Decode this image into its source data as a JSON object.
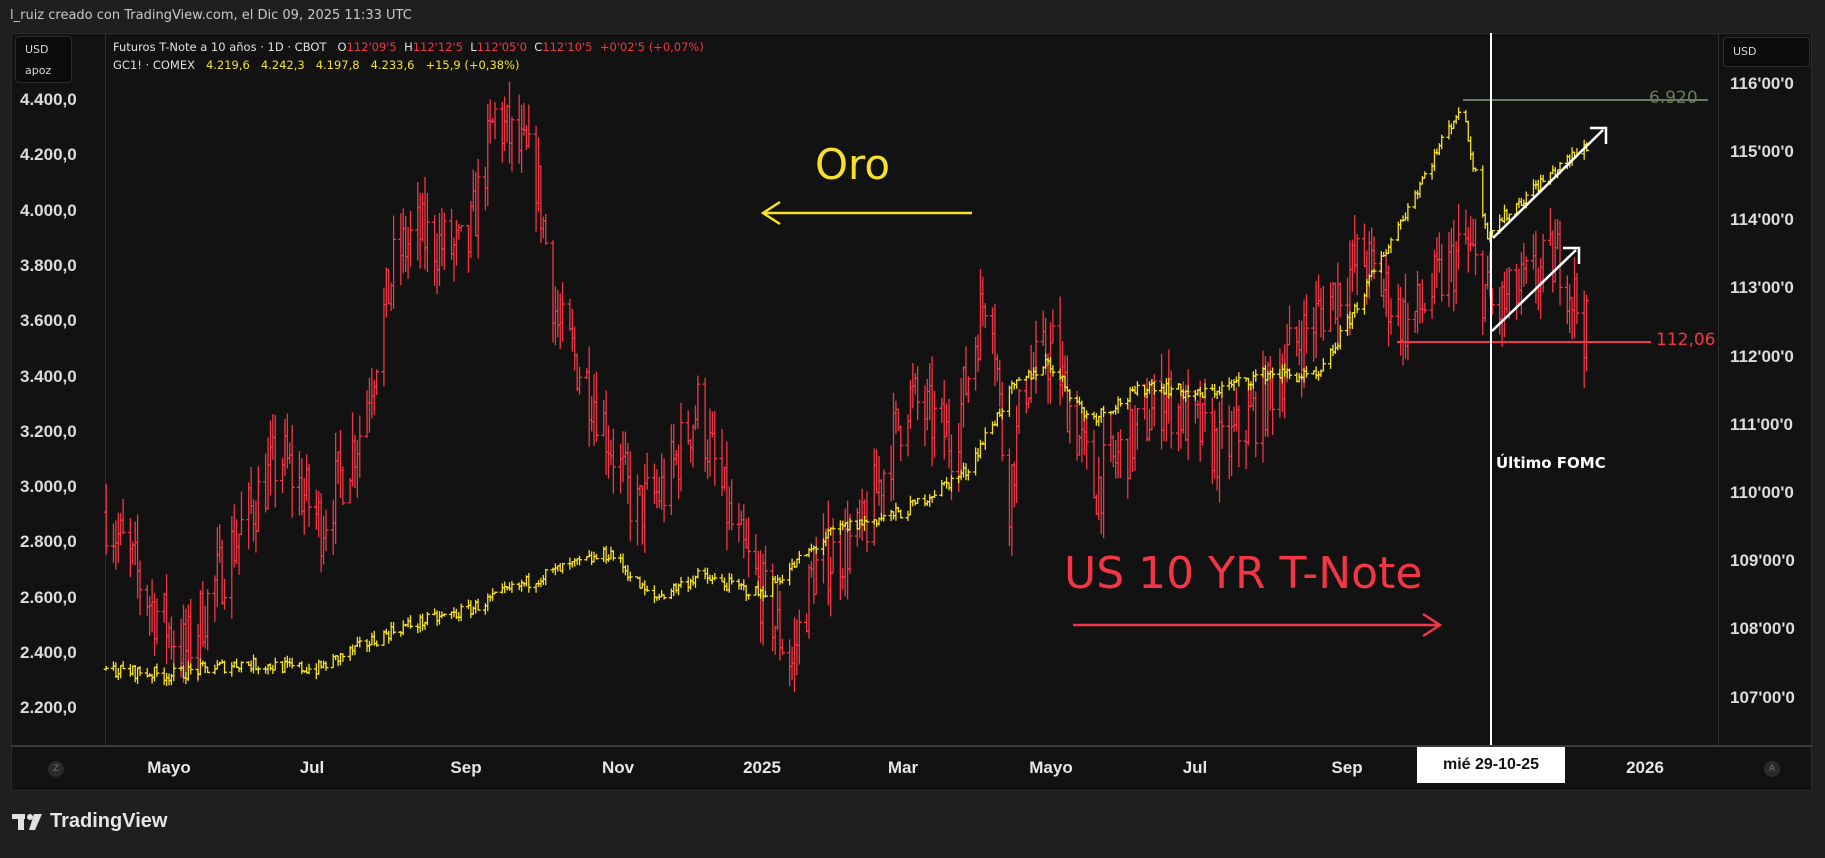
{
  "header": {
    "credit": "l_ruiz creado con TradingView.com, el Dic 09, 2025 11:33 UTC"
  },
  "left_panel": {
    "unit": "USD",
    "label": "apoz"
  },
  "right_panel": {
    "unit": "USD"
  },
  "legend": {
    "tnote": {
      "name": "Futuros T-Note a 10 años · 1D · CBOT",
      "o_label": "O",
      "o": "112'09'5",
      "h_label": "H",
      "h": "112'12'5",
      "l_label": "L",
      "l": "112'05'0",
      "c_label": "C",
      "c": "112'10'5",
      "change": "+0'02'5 (+0,07%)"
    },
    "gold": {
      "name": "GC1! · COMEX",
      "o": "4.219,6",
      "h": "4.242,3",
      "l": "4.197,8",
      "c": "4.233,6",
      "change": "+15,9 (+0,38%)"
    }
  },
  "annotations": {
    "gold": "Oro",
    "tnote": "US 10 YR T-Note",
    "fomc": "Último FOMC",
    "hline_gold": "6.920",
    "hline_tnote": "112,06",
    "crosshair_date": "mié 29-10-25"
  },
  "bottom": {
    "left_btn": "Z",
    "right_btn": "A"
  },
  "footer": {
    "brand": "TradingView"
  },
  "colors": {
    "gold": "#f5e12a",
    "tnote": "#f23645",
    "background": "#121212",
    "hline_gold": "#6b7a5e"
  },
  "chart_data": {
    "type": "ohlc",
    "x_axis": {
      "ticks": [
        "Mayo",
        "Jul",
        "Sep",
        "Nov",
        "2025",
        "Mar",
        "Mayo",
        "Jul",
        "Sep",
        "2026"
      ],
      "xlim": [
        "2024-04-04",
        "2026-02-01"
      ]
    },
    "y_left": {
      "ticks": [
        "4.400,0",
        "4.200,0",
        "4.000,0",
        "3.800,0",
        "3.600,0",
        "3.400,0",
        "3.200,0",
        "3.000,0",
        "2.800,0",
        "2.600,0",
        "2.400,0",
        "2.200,0"
      ],
      "ylim": [
        2150,
        4450
      ]
    },
    "y_right": {
      "ticks": [
        "116'00'0",
        "115'00'0",
        "114'00'0",
        "113'00'0",
        "112'00'0",
        "111'00'0",
        "110'00'0",
        "109'00'0",
        "108'00'0",
        "107'00'0"
      ],
      "ylim": [
        106.5,
        116.3
      ]
    },
    "grid": false,
    "series": [
      {
        "name": "GC1! · COMEX",
        "axis": "left",
        "color": "#f5e12a",
        "points": [
          [
            "2024-04-05",
            2341
          ],
          [
            "2024-05-01",
            2320
          ],
          [
            "2024-05-30",
            2362
          ],
          [
            "2024-07-01",
            2341
          ],
          [
            "2024-08-03",
            2488
          ],
          [
            "2024-09-01",
            2552
          ],
          [
            "2024-10-02",
            2678
          ],
          [
            "2024-10-31",
            2762
          ],
          [
            "2024-11-17",
            2594
          ],
          [
            "2024-12-06",
            2678
          ],
          [
            "2025-01-01",
            2614
          ],
          [
            "2025-02-01",
            2846
          ],
          [
            "2025-03-01",
            2909
          ],
          [
            "2025-03-27",
            3057
          ],
          [
            "2025-04-15",
            3352
          ],
          [
            "2025-04-30",
            3457
          ],
          [
            "2025-05-17",
            3246
          ],
          [
            "2025-06-12",
            3373
          ],
          [
            "2025-07-01",
            3330
          ],
          [
            "2025-07-31",
            3415
          ],
          [
            "2025-08-20",
            3394
          ],
          [
            "2025-09-08",
            3710
          ],
          [
            "2025-10-18",
            4383
          ],
          [
            "2025-10-29",
            3920
          ],
          [
            "2025-11-18",
            4088
          ],
          [
            "2025-12-09",
            4233.6
          ]
        ]
      },
      {
        "name": "Futuros T-Note a 10 años",
        "axis": "right",
        "color": "#f23645",
        "points": [
          [
            "2024-04-05",
            109.72
          ],
          [
            "2024-04-24",
            108.35
          ],
          [
            "2024-05-08",
            107.67
          ],
          [
            "2024-05-27",
            109.2
          ],
          [
            "2024-06-16",
            110.57
          ],
          [
            "2024-07-03",
            109.55
          ],
          [
            "2024-07-19",
            110.91
          ],
          [
            "2024-08-03",
            113.47
          ],
          [
            "2024-08-12",
            113.8
          ],
          [
            "2024-09-01",
            113.47
          ],
          [
            "2024-09-13",
            115.52
          ],
          [
            "2024-09-30",
            114.67
          ],
          [
            "2024-10-09",
            112.45
          ],
          [
            "2024-10-24",
            111.43
          ],
          [
            "2024-11-10",
            109.72
          ],
          [
            "2024-11-22",
            110.06
          ],
          [
            "2024-12-06",
            111.26
          ],
          [
            "2024-12-21",
            109.38
          ],
          [
            "2025-01-04",
            108.35
          ],
          [
            "2025-01-14",
            107.5
          ],
          [
            "2025-01-23",
            108.87
          ],
          [
            "2025-02-12",
            109.38
          ],
          [
            "2025-03-03",
            111.43
          ],
          [
            "2025-03-22",
            110.74
          ],
          [
            "2025-04-06",
            113.3
          ],
          [
            "2025-04-13",
            109.72
          ],
          [
            "2025-04-20",
            111.6
          ],
          [
            "2025-05-02",
            112.1
          ],
          [
            "2025-05-19",
            110.06
          ],
          [
            "2025-06-03",
            110.74
          ],
          [
            "2025-06-17",
            111.43
          ],
          [
            "2025-07-11",
            110.57
          ],
          [
            "2025-07-30",
            111.43
          ],
          [
            "2025-08-09",
            112.1
          ],
          [
            "2025-09-07",
            113.47
          ],
          [
            "2025-09-26",
            112.45
          ],
          [
            "2025-10-20",
            113.64
          ],
          [
            "2025-11-01",
            112.62
          ],
          [
            "2025-11-28",
            113.47
          ],
          [
            "2025-12-09",
            112.33
          ]
        ]
      }
    ]
  }
}
